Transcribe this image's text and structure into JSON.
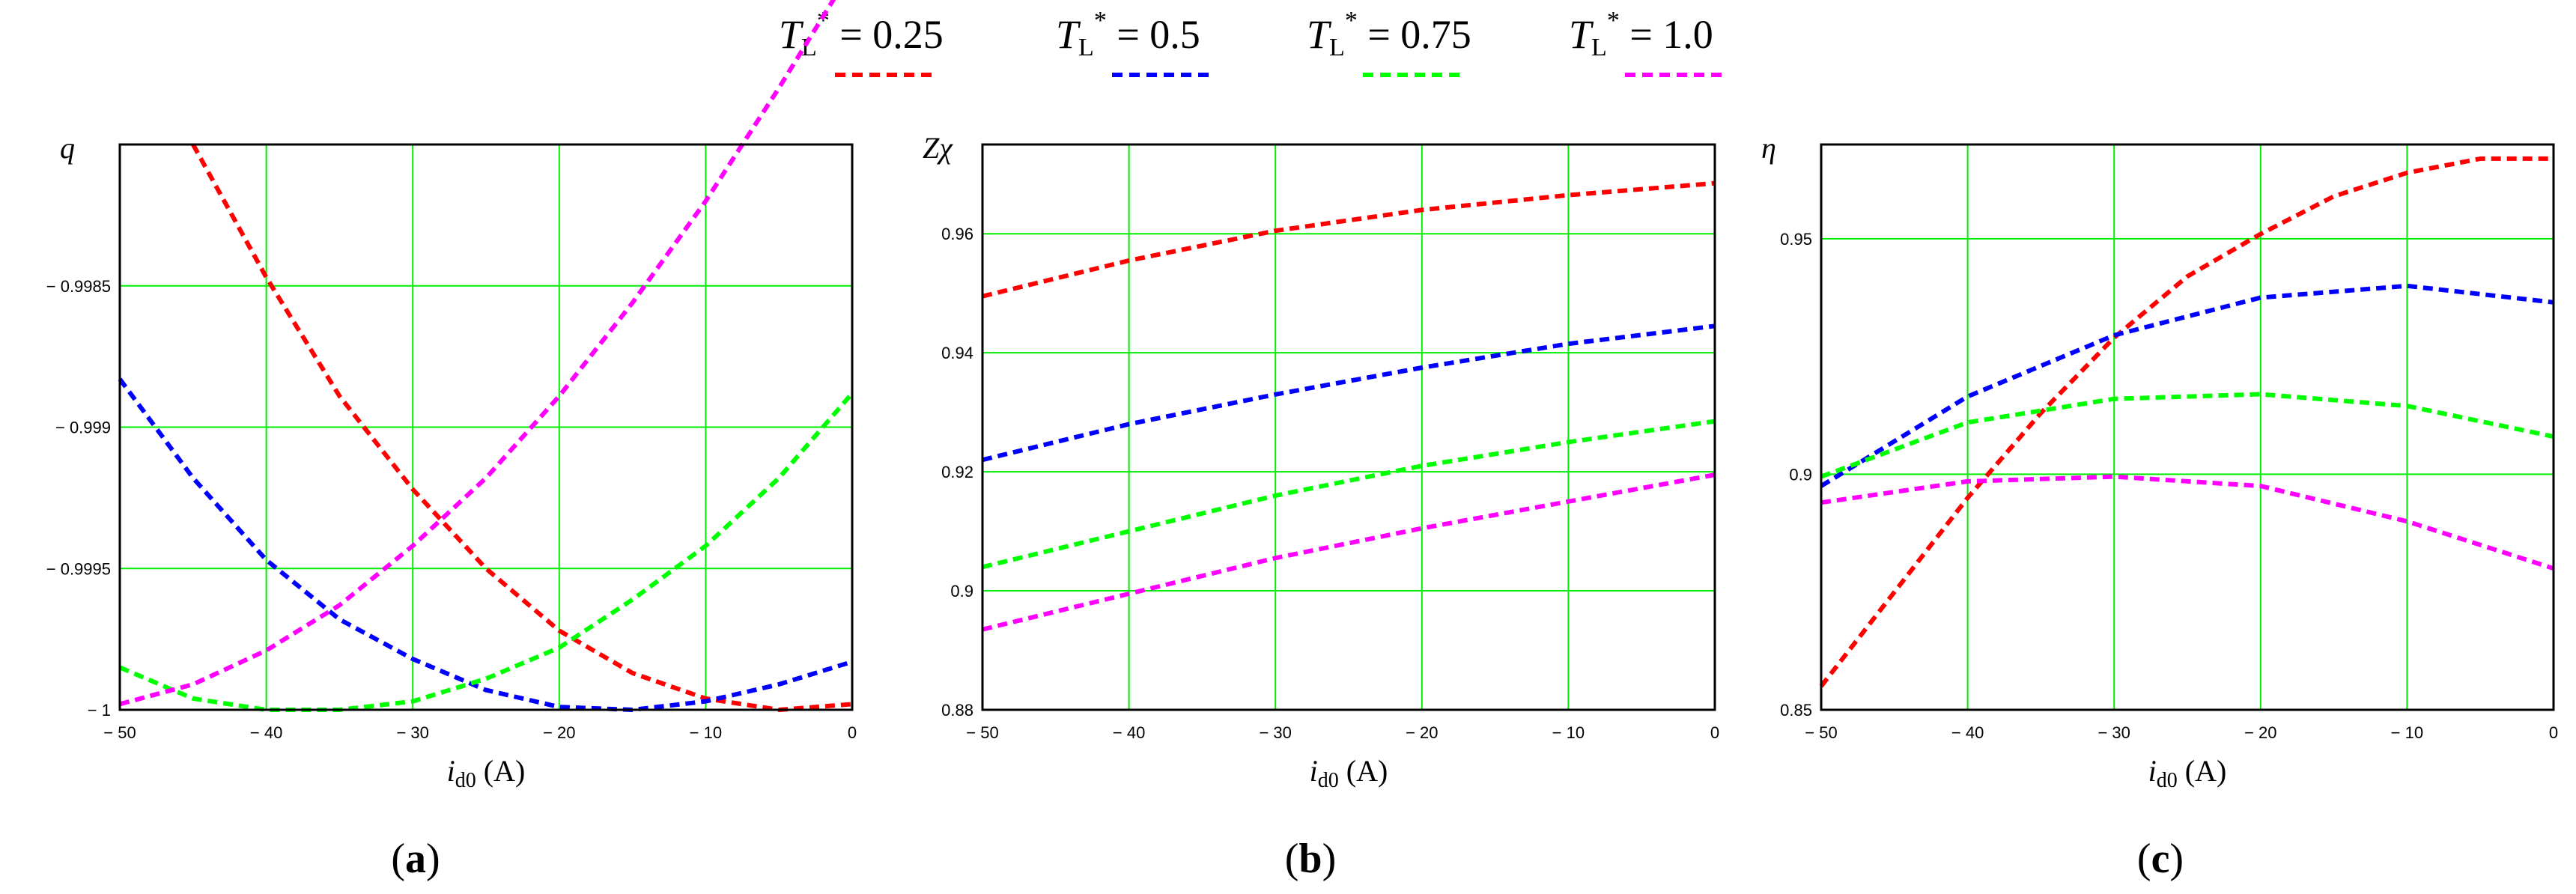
{
  "legend": {
    "entries": [
      {
        "symbol": "T",
        "subscript": "L",
        "superscript": "*",
        "text": " = 0.25",
        "color": "#ff0000"
      },
      {
        "symbol": "T",
        "subscript": "L",
        "superscript": "*",
        "text": " = 0.5",
        "color": "#0000ff"
      },
      {
        "symbol": "T",
        "subscript": "L",
        "superscript": "*",
        "text": " = 0.75",
        "color": "#00ff00"
      },
      {
        "symbol": "T",
        "subscript": "L",
        "superscript": "*",
        "text": " = 1.0",
        "color": "#ff00ff"
      }
    ]
  },
  "colors": {
    "grid": "#00ee00",
    "axis": "#000000"
  },
  "chart_data": [
    {
      "type": "line",
      "panel_label": "(a)",
      "ylabel": "q",
      "xlabel": {
        "base": "i",
        "sub": "d0",
        "unit": " (A)"
      },
      "xlim": [
        -50,
        0
      ],
      "ylim": [
        -1,
        -0.998
      ],
      "xticks": [
        -50,
        -40,
        -30,
        -20,
        -10,
        0
      ],
      "xtick_labels": [
        "− 50",
        "− 40",
        "− 30",
        "− 20",
        "− 10",
        "0"
      ],
      "yticks": [
        -1,
        -0.9995,
        -0.999,
        -0.9985
      ],
      "ytick_labels": [
        "− 1",
        "− 0.9995",
        "− 0.999",
        "− 0.9985"
      ],
      "grid": true,
      "series": [
        {
          "color": "#ff0000",
          "x": [
            -45,
            -40,
            -35,
            -30,
            -25,
            -20,
            -15,
            -10,
            -5,
            0
          ],
          "y": [
            -0.998,
            -0.99847,
            -0.99889,
            -0.99922,
            -0.9995,
            -0.99972,
            -0.99987,
            -0.99996,
            -1.0,
            -0.99998
          ]
        },
        {
          "color": "#0000ff",
          "x": [
            -50,
            -45,
            -40,
            -35,
            -30,
            -25,
            -20,
            -15,
            -10,
            -5,
            0
          ],
          "y": [
            -0.99883,
            -0.99918,
            -0.99947,
            -0.99968,
            -0.99982,
            -0.99993,
            -0.99999,
            -1.0,
            -0.99997,
            -0.99991,
            -0.99983
          ]
        },
        {
          "color": "#00ff00",
          "x": [
            -50,
            -45,
            -40,
            -35,
            -30,
            -25,
            -20,
            -15,
            -10,
            -5,
            0
          ],
          "y": [
            -0.99985,
            -0.99996,
            -1.0,
            -1.0,
            -0.99997,
            -0.99989,
            -0.99978,
            -0.99961,
            -0.99942,
            -0.99918,
            -0.99888
          ]
        },
        {
          "color": "#ff00ff",
          "x": [
            -50,
            -45,
            -40,
            -35,
            -30,
            -25,
            -20,
            -15,
            -10,
            -5,
            0
          ],
          "y": [
            -0.99998,
            -0.99991,
            -0.99979,
            -0.99963,
            -0.99942,
            -0.99918,
            -0.99889,
            -0.99856,
            -0.9982,
            -0.9978,
            -0.99738
          ]
        }
      ]
    },
    {
      "type": "line",
      "panel_label": "(b)",
      "ylabel": "Zχ",
      "xlabel": {
        "base": "i",
        "sub": "d0",
        "unit": " (A)"
      },
      "xlim": [
        -50,
        0
      ],
      "ylim": [
        0.88,
        0.975
      ],
      "xticks": [
        -50,
        -40,
        -30,
        -20,
        -10,
        0
      ],
      "xtick_labels": [
        "− 50",
        "− 40",
        "− 30",
        "− 20",
        "− 10",
        "0"
      ],
      "yticks": [
        0.88,
        0.9,
        0.92,
        0.94,
        0.96
      ],
      "ytick_labels": [
        "0.88",
        "0.9",
        "0.92",
        "0.94",
        "0.96"
      ],
      "grid": true,
      "series": [
        {
          "color": "#ff0000",
          "x": [
            -50,
            -40,
            -30,
            -20,
            -10,
            0
          ],
          "y": [
            0.9495,
            0.9555,
            0.9605,
            0.964,
            0.9665,
            0.9685
          ]
        },
        {
          "color": "#0000ff",
          "x": [
            -50,
            -40,
            -30,
            -20,
            -10,
            0
          ],
          "y": [
            0.922,
            0.928,
            0.933,
            0.9375,
            0.9415,
            0.9445
          ]
        },
        {
          "color": "#00ff00",
          "x": [
            -50,
            -40,
            -30,
            -20,
            -10,
            0
          ],
          "y": [
            0.904,
            0.91,
            0.916,
            0.921,
            0.925,
            0.9285
          ]
        },
        {
          "color": "#ff00ff",
          "x": [
            -50,
            -40,
            -30,
            -20,
            -10,
            0
          ],
          "y": [
            0.8935,
            0.8995,
            0.9055,
            0.9105,
            0.915,
            0.9195
          ]
        }
      ]
    },
    {
      "type": "line",
      "panel_label": "(c)",
      "ylabel": "η",
      "xlabel": {
        "base": "i",
        "sub": "d0",
        "unit": " (A)"
      },
      "xlim": [
        -50,
        0
      ],
      "ylim": [
        0.85,
        0.97
      ],
      "xticks": [
        -50,
        -40,
        -30,
        -20,
        -10,
        0
      ],
      "xtick_labels": [
        "− 50",
        "− 40",
        "− 30",
        "− 20",
        "− 10",
        "0"
      ],
      "yticks": [
        0.85,
        0.9,
        0.95
      ],
      "ytick_labels": [
        "0.85",
        "0.9",
        "0.95"
      ],
      "grid": true,
      "series": [
        {
          "color": "#ff0000",
          "x": [
            -50,
            -45,
            -40,
            -35,
            -30,
            -25,
            -20,
            -15,
            -10,
            -5,
            0
          ],
          "y": [
            0.855,
            0.875,
            0.895,
            0.913,
            0.929,
            0.942,
            0.951,
            0.959,
            0.964,
            0.967,
            0.967
          ]
        },
        {
          "color": "#0000ff",
          "x": [
            -50,
            -40,
            -30,
            -20,
            -10,
            0
          ],
          "y": [
            0.8975,
            0.9165,
            0.9295,
            0.9375,
            0.94,
            0.9365
          ]
        },
        {
          "color": "#00ff00",
          "x": [
            -50,
            -40,
            -30,
            -20,
            -10,
            0
          ],
          "y": [
            0.8995,
            0.911,
            0.916,
            0.917,
            0.9145,
            0.908
          ]
        },
        {
          "color": "#ff00ff",
          "x": [
            -50,
            -40,
            -30,
            -20,
            -10,
            0
          ],
          "y": [
            0.894,
            0.8985,
            0.8995,
            0.8975,
            0.89,
            0.88
          ]
        }
      ]
    }
  ]
}
